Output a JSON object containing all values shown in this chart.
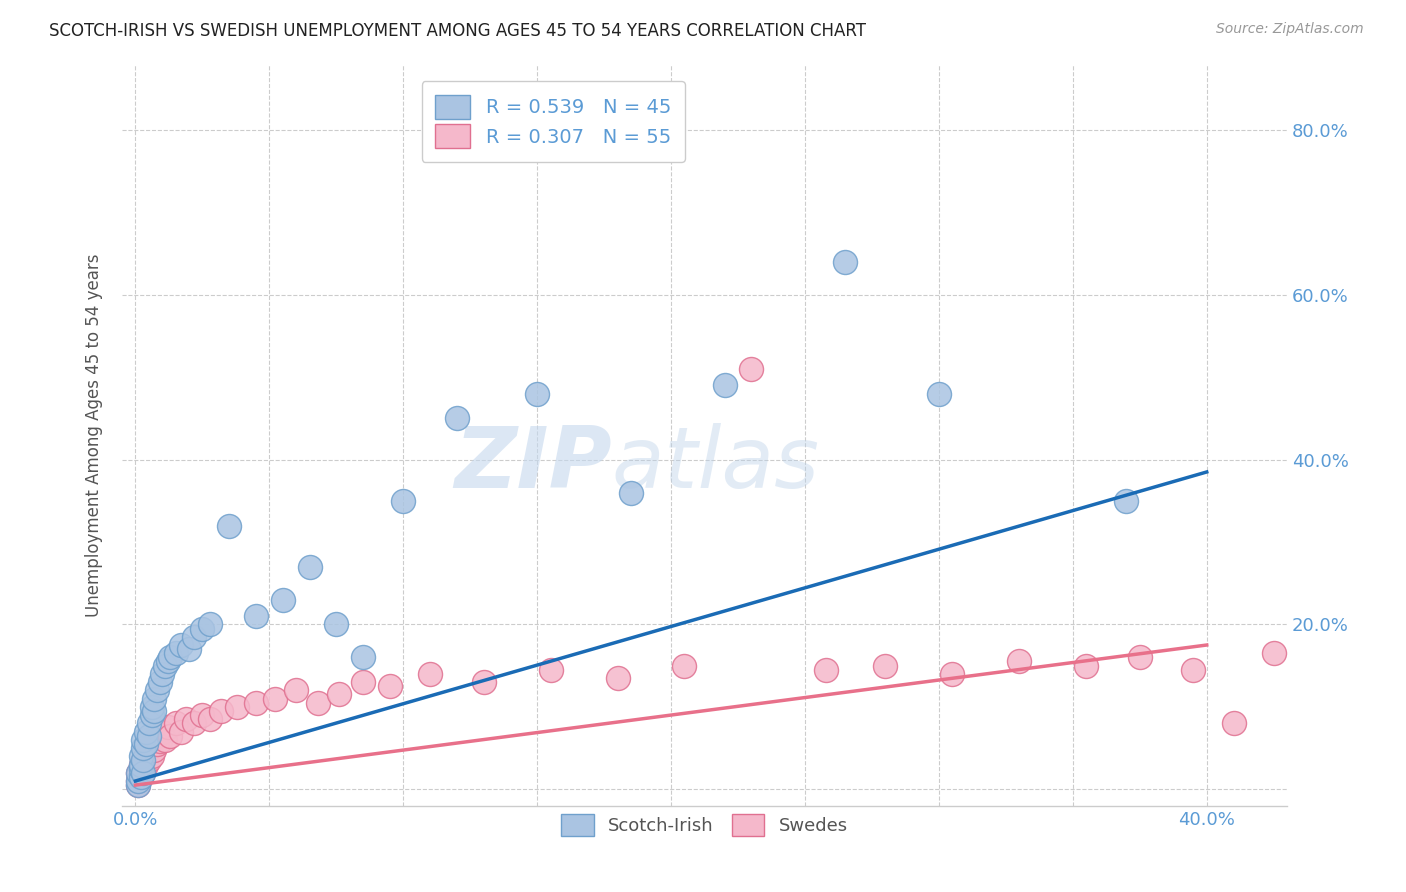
{
  "title": "SCOTCH-IRISH VS SWEDISH UNEMPLOYMENT AMONG AGES 45 TO 54 YEARS CORRELATION CHART",
  "source": "Source: ZipAtlas.com",
  "ylabel": "Unemployment Among Ages 45 to 54 years",
  "xlim": [
    -0.005,
    0.43
  ],
  "ylim": [
    -0.02,
    0.88
  ],
  "scotch_irish_color": "#aac4e2",
  "swedes_color": "#f5b8cb",
  "scotch_irish_edge": "#6fa0cc",
  "swedes_edge": "#e07090",
  "regression_blue": "#1a6bb5",
  "regression_pink": "#e8708a",
  "R_scotch": 0.539,
  "N_scotch": 45,
  "R_swedes": 0.307,
  "N_swedes": 55,
  "legend_label_scotch": "Scotch-Irish",
  "legend_label_swedes": "Swedes",
  "watermark_zip": "ZIP",
  "watermark_atlas": "atlas",
  "background_color": "#ffffff",
  "grid_color": "#cccccc",
  "title_color": "#222222",
  "axis_color": "#5b9bd5",
  "blue_line_x0": 0.0,
  "blue_line_y0": 0.01,
  "blue_line_x1": 0.4,
  "blue_line_y1": 0.385,
  "pink_line_x0": 0.0,
  "pink_line_y0": 0.005,
  "pink_line_x1": 0.4,
  "pink_line_y1": 0.175,
  "scotch_irish_x": [
    0.001,
    0.001,
    0.001,
    0.002,
    0.002,
    0.002,
    0.002,
    0.003,
    0.003,
    0.003,
    0.003,
    0.004,
    0.004,
    0.005,
    0.005,
    0.006,
    0.006,
    0.007,
    0.007,
    0.008,
    0.009,
    0.01,
    0.011,
    0.012,
    0.013,
    0.015,
    0.017,
    0.02,
    0.022,
    0.025,
    0.028,
    0.035,
    0.045,
    0.055,
    0.065,
    0.075,
    0.085,
    0.1,
    0.12,
    0.15,
    0.185,
    0.22,
    0.265,
    0.3,
    0.37
  ],
  "scotch_irish_y": [
    0.005,
    0.01,
    0.02,
    0.015,
    0.025,
    0.03,
    0.04,
    0.02,
    0.035,
    0.05,
    0.06,
    0.055,
    0.07,
    0.065,
    0.08,
    0.09,
    0.1,
    0.095,
    0.11,
    0.12,
    0.13,
    0.14,
    0.15,
    0.155,
    0.16,
    0.165,
    0.175,
    0.17,
    0.185,
    0.195,
    0.2,
    0.32,
    0.21,
    0.23,
    0.27,
    0.2,
    0.16,
    0.35,
    0.45,
    0.48,
    0.36,
    0.49,
    0.64,
    0.48,
    0.35
  ],
  "swedes_x": [
    0.001,
    0.001,
    0.001,
    0.002,
    0.002,
    0.002,
    0.003,
    0.003,
    0.003,
    0.004,
    0.004,
    0.005,
    0.005,
    0.005,
    0.006,
    0.006,
    0.007,
    0.007,
    0.008,
    0.008,
    0.009,
    0.01,
    0.011,
    0.012,
    0.013,
    0.015,
    0.017,
    0.019,
    0.022,
    0.025,
    0.028,
    0.032,
    0.038,
    0.045,
    0.052,
    0.06,
    0.068,
    0.076,
    0.085,
    0.095,
    0.11,
    0.13,
    0.155,
    0.18,
    0.205,
    0.23,
    0.258,
    0.28,
    0.305,
    0.33,
    0.355,
    0.375,
    0.395,
    0.41,
    0.425
  ],
  "swedes_y": [
    0.005,
    0.01,
    0.02,
    0.015,
    0.025,
    0.03,
    0.02,
    0.035,
    0.025,
    0.04,
    0.03,
    0.045,
    0.035,
    0.05,
    0.04,
    0.055,
    0.048,
    0.06,
    0.055,
    0.065,
    0.058,
    0.07,
    0.06,
    0.075,
    0.065,
    0.08,
    0.07,
    0.085,
    0.08,
    0.09,
    0.085,
    0.095,
    0.1,
    0.105,
    0.11,
    0.12,
    0.105,
    0.115,
    0.13,
    0.125,
    0.14,
    0.13,
    0.145,
    0.135,
    0.15,
    0.51,
    0.145,
    0.15,
    0.14,
    0.155,
    0.15,
    0.16,
    0.145,
    0.08,
    0.165
  ]
}
